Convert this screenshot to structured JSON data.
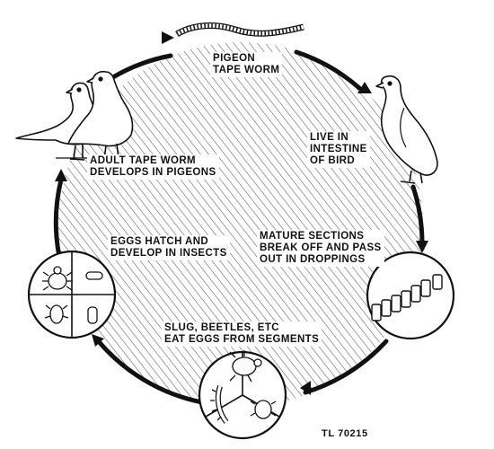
{
  "diagram": {
    "labels": {
      "pigeon_tape_worm": [
        "PIGEON",
        "TAPE WORM"
      ],
      "live_in_intestine": [
        "LIVE IN",
        "INTESTINE",
        "OF BIRD"
      ],
      "mature_sections": [
        "MATURE SECTIONS",
        "BREAK OFF AND PASS",
        "OUT IN DROPPINGS"
      ],
      "slug_beetles": [
        "SLUG, BEETLES, ETC",
        "EAT EGGS FROM SEGMENTS"
      ],
      "eggs_hatch": [
        "EGGS HATCH AND",
        "DEVELOP IN INSECTS"
      ],
      "adult_tape_worm": [
        "ADULT TAPE WORM",
        "DEVELOPS IN PIGEONS"
      ]
    },
    "figure_code": "TL 70215"
  }
}
